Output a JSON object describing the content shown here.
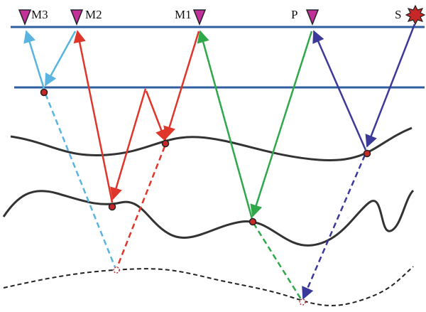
{
  "labels": [
    "M3",
    "M2",
    "M1",
    "P",
    "S"
  ]
}
